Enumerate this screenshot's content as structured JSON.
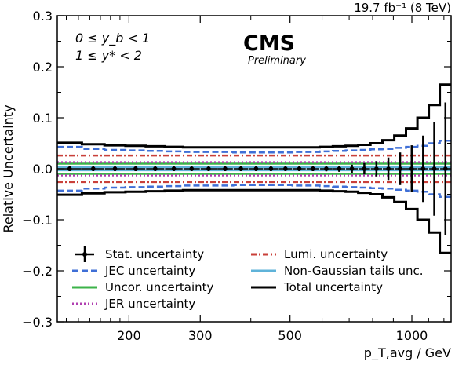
{
  "chart_data": {
    "type": "line",
    "lumi_label": "19.7 fb⁻¹ (8 TeV)",
    "experiment": "CMS",
    "status": "Preliminary",
    "cuts": [
      "0 ≤ y_b < 1",
      "1 ≤ y* < 2"
    ],
    "xlabel": "p_T,avg / GeV",
    "ylabel": "Relative Uncertainty",
    "xscale": "log",
    "xlim": [
      133,
      1250
    ],
    "ylim": [
      -0.3,
      0.3
    ],
    "x_ticks": [
      200,
      300,
      500,
      1000
    ],
    "x_tick_labels": [
      "200",
      "300",
      "500",
      "1000"
    ],
    "y_ticks": [
      0.3,
      0.2,
      0.1,
      0.0,
      -0.1,
      -0.2,
      -0.3
    ],
    "y_tick_labels": [
      "0.3",
      "0.2",
      "0.1",
      "0.0",
      "−0.1",
      "−0.2",
      "−0.3"
    ],
    "bin_edges": [
      133,
      153,
      174,
      196,
      220,
      245,
      272,
      300,
      330,
      362,
      395,
      430,
      468,
      507,
      548,
      592,
      638,
      686,
      737,
      790,
      846,
      905,
      967,
      1032,
      1101,
      1172,
      1250
    ],
    "legend": {
      "position": "bottom",
      "entries": [
        {
          "label": "Stat. uncertainty",
          "key": "stat"
        },
        {
          "label": "JEC uncertainty",
          "key": "jec"
        },
        {
          "label": "Uncor. uncertainty",
          "key": "uncor"
        },
        {
          "label": "JER uncertainty",
          "key": "jer"
        },
        {
          "label": "Lumi. uncertainty",
          "key": "lumi"
        },
        {
          "label": "Non-Gaussian tails unc.",
          "key": "nongauss"
        },
        {
          "label": "Total uncertainty",
          "key": "total"
        }
      ]
    },
    "series": [
      {
        "name": "Stat. uncertainty",
        "key": "stat",
        "color": "#000000",
        "style": "points",
        "values": [
          0.004,
          0.004,
          0.004,
          0.004,
          0.003,
          0.003,
          0.003,
          0.003,
          0.003,
          0.003,
          0.003,
          0.003,
          0.003,
          0.004,
          0.004,
          0.005,
          0.006,
          0.008,
          0.011,
          0.015,
          0.022,
          0.032,
          0.046,
          0.065,
          0.092,
          0.13
        ]
      },
      {
        "name": "JEC uncertainty",
        "key": "jec",
        "color": "#3f6fd6",
        "style": "dashed",
        "values": [
          0.043,
          0.039,
          0.037,
          0.036,
          0.035,
          0.034,
          0.033,
          0.033,
          0.033,
          0.032,
          0.032,
          0.032,
          0.032,
          0.033,
          0.033,
          0.034,
          0.035,
          0.036,
          0.037,
          0.038,
          0.039,
          0.041,
          0.043,
          0.045,
          0.05,
          0.055
        ]
      },
      {
        "name": "Uncor. uncertainty",
        "key": "uncor",
        "color": "#3cb34a",
        "style": "solid",
        "values": 0.01
      },
      {
        "name": "JER uncertainty",
        "key": "jer",
        "color": "#b03fb0",
        "style": "dotted",
        "values": 0.013
      },
      {
        "name": "Lumi. uncertainty",
        "key": "lumi",
        "color": "#c9403a",
        "style": "dashdot",
        "values": 0.026
      },
      {
        "name": "Non-Gaussian tails unc.",
        "key": "nongauss",
        "color": "#5fb3d9",
        "style": "solid",
        "values": 0.003
      },
      {
        "name": "Total uncertainty",
        "key": "total",
        "color": "#000000",
        "style": "solid",
        "values": [
          0.051,
          0.048,
          0.046,
          0.045,
          0.044,
          0.043,
          0.042,
          0.042,
          0.042,
          0.042,
          0.042,
          0.042,
          0.042,
          0.042,
          0.042,
          0.043,
          0.044,
          0.045,
          0.047,
          0.05,
          0.056,
          0.065,
          0.079,
          0.1,
          0.125,
          0.165
        ]
      }
    ]
  }
}
